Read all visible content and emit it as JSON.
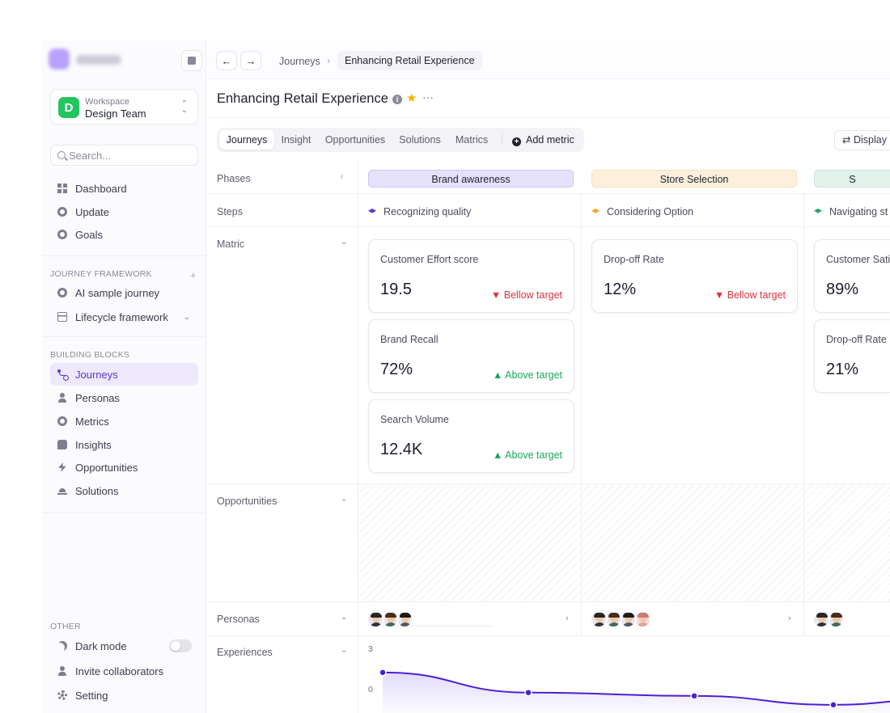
{
  "sidebar": {
    "workspace": {
      "label": "Workspace",
      "name": "Design Team",
      "initial": "D"
    },
    "search_placeholder": "Search...",
    "main_nav": [
      "Dashboard",
      "Update",
      "Goals"
    ],
    "journey_framework": {
      "heading": "JOURNEY FRAMEWORK",
      "items": [
        "AI sample journey",
        "Lifecycle framework"
      ]
    },
    "building_blocks": {
      "heading": "BUILDING BLOCKS",
      "items": [
        "Journeys",
        "Personas",
        "Metrics",
        "Insights",
        "Opportunities",
        "Solutions"
      ],
      "active": "Journeys"
    },
    "other": {
      "heading": "OTHER",
      "items": [
        "Dark mode",
        "Invite collaborators",
        "Setting"
      ]
    }
  },
  "topbar": {
    "breadcrumb": [
      "Journeys",
      "Enhancing Retail Experience"
    ]
  },
  "page": {
    "title": "Enhancing Retail Experience",
    "tabs": [
      "Journeys",
      "Insight",
      "Opportunities",
      "Solutions",
      "Matrics"
    ],
    "active_tab": "Journeys",
    "add_metric": "Add metric",
    "display": "Display"
  },
  "rows": [
    "Phases",
    "Steps",
    "Matric",
    "Opportunities",
    "Personas",
    "Experiences"
  ],
  "columns": [
    {
      "phase": "Brand awareness",
      "phase_color": "#e6e1fb",
      "step": "Recognizing quality",
      "step_color": "#5b35d5",
      "metrics": [
        {
          "title": "Customer Effort score",
          "value": "19.5",
          "status": "Bellow target",
          "trend": "down"
        },
        {
          "title": "Brand Recall",
          "value": "72%",
          "status": "Above target",
          "trend": "up"
        },
        {
          "title": "Search Volume",
          "value": "12.4K",
          "status": "Above target",
          "trend": "up"
        }
      ],
      "personas": 3
    },
    {
      "phase": "Store Selection",
      "phase_color": "#fcf0dc",
      "step": "Considering Option",
      "step_color": "#f0a429",
      "metrics": [
        {
          "title": "Drop-off Rate",
          "value": "12%",
          "status": "Bellow target",
          "trend": "down"
        }
      ],
      "personas": 4
    },
    {
      "phase": "S",
      "phase_color": "#e0f2ea",
      "step": "Navigating st",
      "step_color": "#22a565",
      "metrics": [
        {
          "title": "Customer Satis",
          "value": "89%",
          "status": "",
          "trend": ""
        },
        {
          "title": "Drop-off Rate",
          "value": "21%",
          "status": "",
          "trend": ""
        }
      ],
      "personas": 2
    }
  ],
  "experience_chart": {
    "y_ticks": [
      "3",
      "0"
    ],
    "points": [
      2.65,
      1.75,
      1.6,
      1.2,
      1.4
    ],
    "line_color": "#4b1fd1",
    "ylim": [
      0,
      3
    ]
  }
}
